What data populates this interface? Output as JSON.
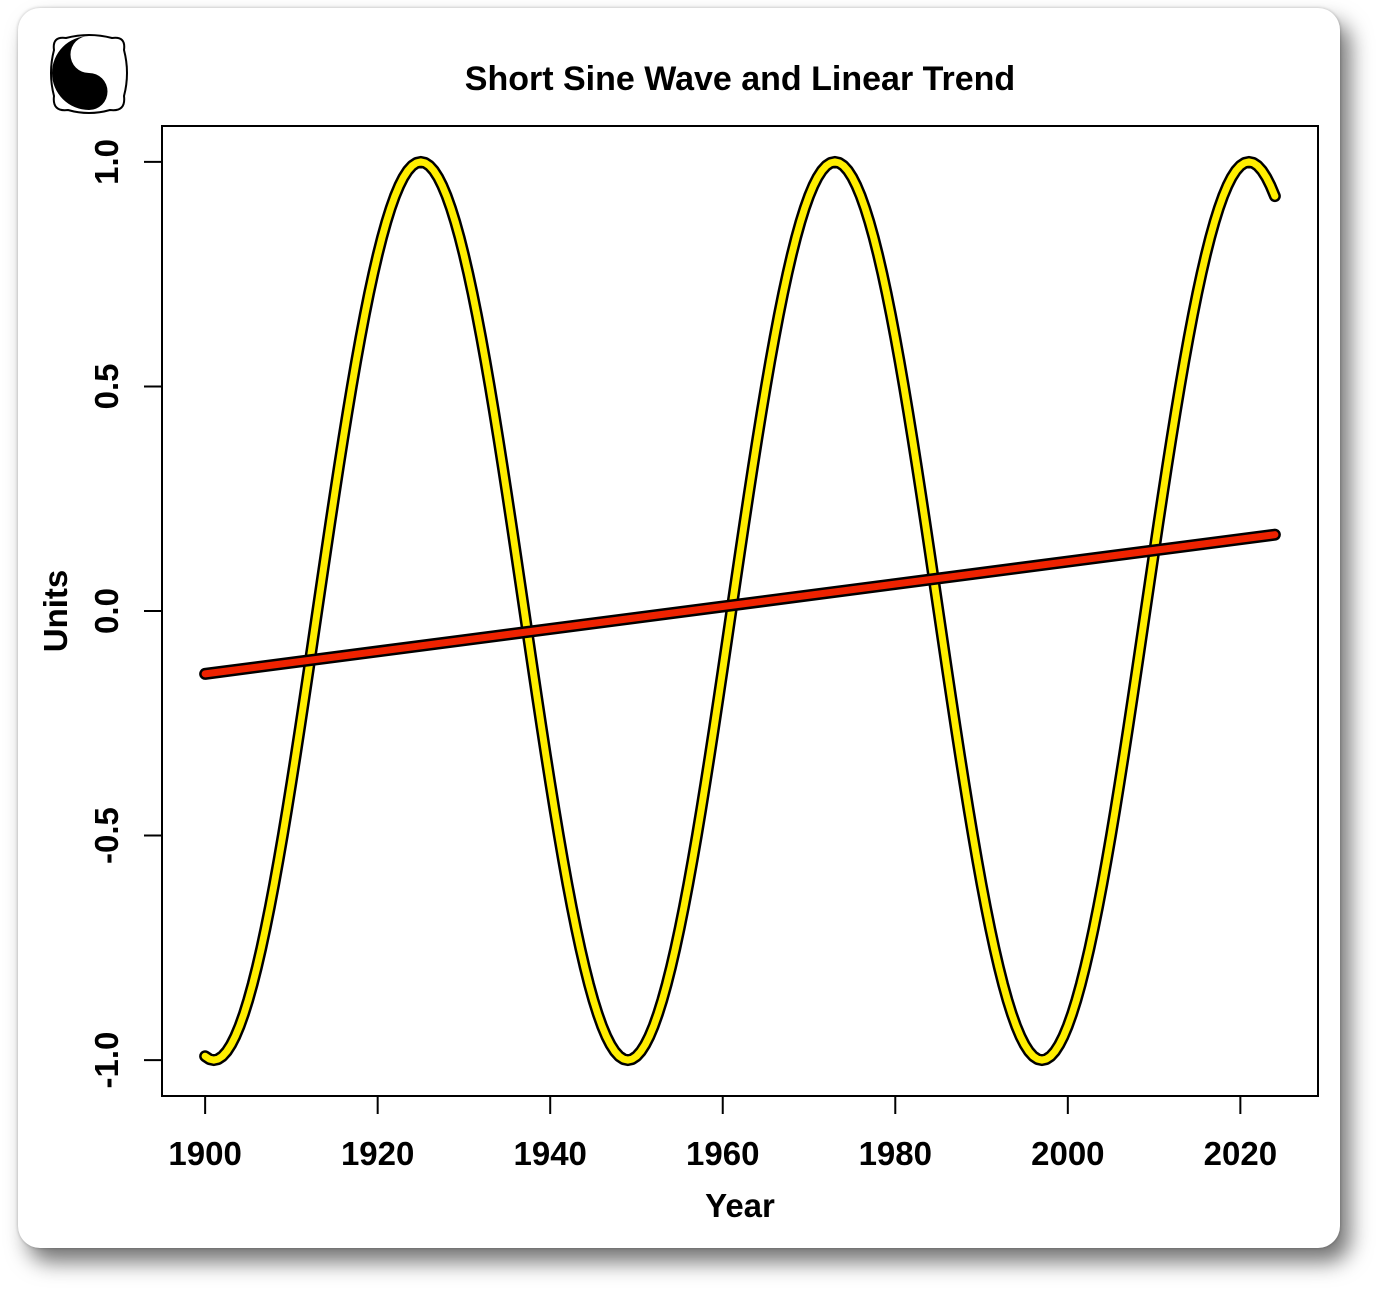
{
  "chart_data": {
    "type": "line",
    "title": "Short Sine Wave and Linear Trend",
    "xlabel": "Year",
    "ylabel": "Units",
    "xlim": [
      1895,
      2029
    ],
    "ylim": [
      -1.08,
      1.08
    ],
    "xticks": [
      1900,
      1920,
      1940,
      1960,
      1980,
      2000,
      2020
    ],
    "xtick_labels": [
      "1900",
      "1920",
      "1940",
      "1960",
      "1980",
      "2000",
      "2020"
    ],
    "yticks": [
      -1.0,
      -0.5,
      0.0,
      0.5,
      1.0
    ],
    "ytick_labels": [
      "-1.0",
      "-0.5",
      "0.0",
      "0.5",
      "1.0"
    ],
    "grid": false,
    "series": [
      {
        "kind": "sine",
        "color": "#ffee00",
        "outline": "#000000",
        "x_start": 1900,
        "x_end": 2024,
        "period_years": 48,
        "peak_years": [
          1925,
          1973,
          2021
        ],
        "trough_years": [
          1901,
          1949,
          1997
        ],
        "points": [
          [
            1900,
            -0.99
          ],
          [
            1901,
            -1.0
          ],
          [
            1905,
            -0.85
          ],
          [
            1910,
            -0.38
          ],
          [
            1913,
            0.0
          ],
          [
            1915,
            0.26
          ],
          [
            1920,
            0.79
          ],
          [
            1925,
            1.0
          ],
          [
            1930,
            0.79
          ],
          [
            1935,
            0.26
          ],
          [
            1937,
            0.0
          ],
          [
            1940,
            -0.38
          ],
          [
            1945,
            -0.85
          ],
          [
            1949,
            -1.0
          ],
          [
            1955,
            -0.71
          ],
          [
            1961,
            0.0
          ],
          [
            1965,
            0.5
          ],
          [
            1970,
            0.92
          ],
          [
            1973,
            1.0
          ],
          [
            1980,
            0.61
          ],
          [
            1985,
            0.0
          ],
          [
            1990,
            -0.61
          ],
          [
            1997,
            -1.0
          ],
          [
            2005,
            -0.5
          ],
          [
            2009,
            0.0
          ],
          [
            2015,
            0.71
          ],
          [
            2021,
            1.0
          ],
          [
            2024,
            0.92
          ]
        ]
      },
      {
        "kind": "linear",
        "color": "#ee2200",
        "outline": "#000000",
        "points": [
          [
            1900,
            -0.14
          ],
          [
            2024,
            0.17
          ]
        ]
      }
    ]
  }
}
